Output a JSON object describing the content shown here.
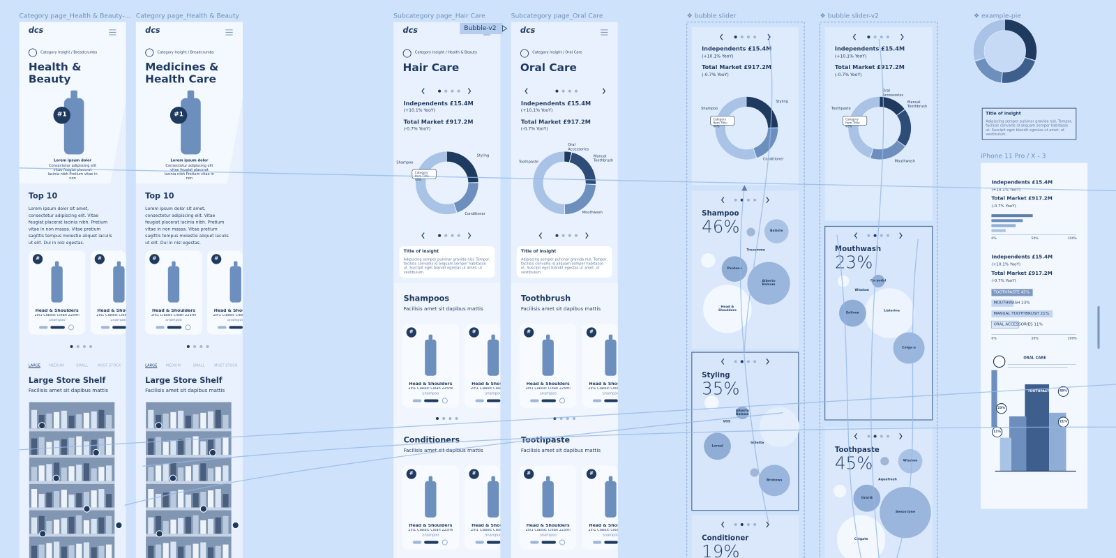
{
  "logo": "dcs",
  "category_pages": [
    {
      "label": "Category page_Health & Beauty-...",
      "title": "Health & Beauty"
    },
    {
      "label": "Category page_Health & Beauty",
      "title": "Medicines & Health Care"
    }
  ],
  "category_common": {
    "breadcrumb": "Category Insight / Breadcrumbs",
    "badge": "#1",
    "hero_caption": "Lorem ipsum dolor",
    "hero_text": "Consectetur adipiscing elit vitae feugiat placerat lacinia nibh Pretium vitae in non",
    "section": "Top 10",
    "body": "Lorem ipsum dolor sit amet, consectetur adipiscing elit. Vitae feugiat placerat lacinia nibh. Pretium vitae in non massa. Vitae pretium sagittis tempus molestie aliquet iaculis ut elit. Dui in nisl egestas.",
    "tabs": [
      "LARGE",
      "MEDIUM",
      "SMALL",
      "MUST STOCK"
    ],
    "shelf_title": "Large Store Shelf",
    "shelf_sub": "Facilisis amet sit dapibus mattis"
  },
  "product": {
    "badge": "#",
    "name": "Head & Shoulders",
    "desc": "2in1 Classic Clean 225ml",
    "category": "Shampoo"
  },
  "subcategory_pages": [
    {
      "label": "Subcategory page_Hair Care",
      "breadcrumb": "Category Insight / Health & Beauty",
      "title": "Hair Care",
      "donut_labels": [
        "Shampoo",
        "Styling",
        "Conditioner"
      ],
      "sections": [
        {
          "title": "Shampoos",
          "sub": "Facilisis amet sit dapibus mattis"
        },
        {
          "title": "Conditioners",
          "sub": "Facilisis amet sit dapibus mattis"
        }
      ]
    },
    {
      "label": "Subcategory page_Oral Care",
      "breadcrumb": "Category Insight / Oral Care",
      "title": "Oral Care",
      "donut_labels": [
        "Oral Accessories",
        "Toothpaste",
        "Manual Toothbrush",
        "Mouthwash"
      ],
      "sections": [
        {
          "title": "Toothbrush",
          "sub": "Facilisis amet sit dapibus mattis"
        },
        {
          "title": "Toothpaste",
          "sub": "Facilisis amet sit dapibus mattis"
        }
      ]
    }
  ],
  "overlay_label": "Bubble-v2",
  "metrics": [
    {
      "label": "Independents £15.4M",
      "change": "(+10.1% YooY)"
    },
    {
      "label": "Total Market £917.2M",
      "change": "(-0.7% YooY)"
    }
  ],
  "insight": {
    "title": "Title of insight",
    "text": "Adipiscing semper pulvinar gravida nisl. Tempor, facilisis convallis id aliquam semper habitasse ut. Suscipit eget blandit egestas ut amet, ut vestibulum."
  },
  "tooltip": "Category Item Title: 40%",
  "bubble_slider": {
    "label": "❖ bubble slider",
    "donut_labels": [
      "Shampoo",
      "Styling",
      "Conditioner"
    ],
    "slides": [
      {
        "title": "Shampoo",
        "percent": "46%",
        "bubbles": [
          "Batiste",
          "Tresemme",
          "Pantene",
          "Alberto Balsam",
          "Head & Shoulders"
        ]
      },
      {
        "title": "Styling",
        "percent": "35%",
        "bubbles": [
          "Alberto Balsam",
          "VO5",
          "Loreal",
          "Gillette",
          "Bristows"
        ]
      },
      {
        "title": "Conditioner",
        "percent": "19%"
      }
    ]
  },
  "bubble_slider_v2": {
    "label": "❖ bubble slider-v2",
    "donut_labels": [
      "Oral Accessories",
      "Toothpaste",
      "Manual Toothbrush",
      "Mouthwash"
    ],
    "slides": [
      {
        "title": "Mouthwash",
        "percent": "23%",
        "bubbles": [
          "Corsodyl",
          "Wisdom",
          "Listerine",
          "Enliven",
          "Colgate"
        ]
      },
      {
        "title": "Toothpaste",
        "percent": "45%",
        "bubbles": [
          "Wisdom",
          "Aquafresh",
          "Oral-B",
          "Sensodyne",
          "Colgate"
        ]
      }
    ]
  },
  "example_pie": {
    "label": "❖ example-pie"
  },
  "iphone": {
    "label": "iPhone 11 Pro / X - 3",
    "axis": [
      "0%",
      "50%",
      "100%"
    ],
    "bars": [
      "TOOTHPASTE 45%",
      "MOUTHWASH 23%",
      "MANUAL TOOTHBRUSH 21%",
      "ORAL ACCESSORIES 11%"
    ],
    "infographic_title": "ORAL CARE",
    "infographic_labels": [
      "TOOTHPASTE",
      "45%",
      "23%",
      "21%",
      "11%"
    ]
  }
}
